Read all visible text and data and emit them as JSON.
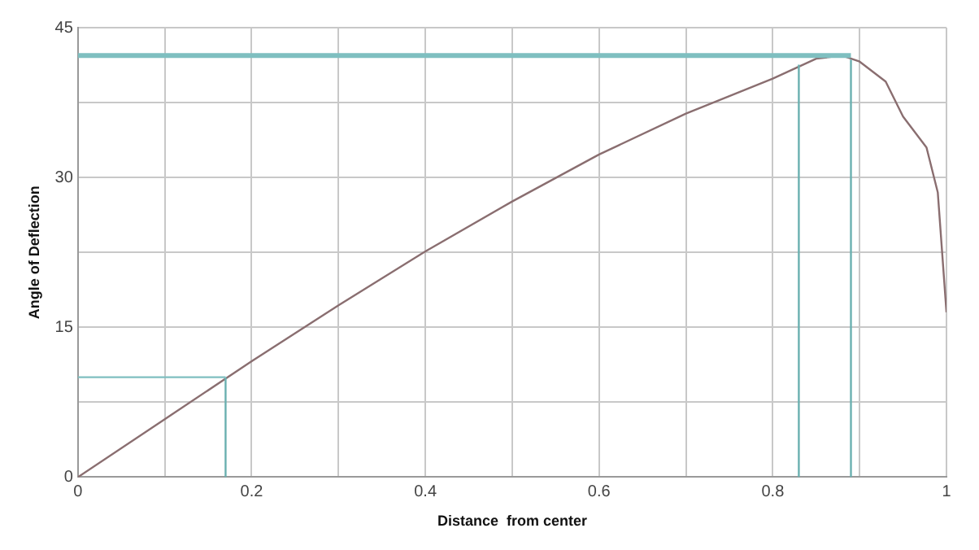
{
  "chart_data": {
    "type": "line",
    "xlabel": "Distance  from center",
    "ylabel": "Angle of Deflection",
    "marker": "none",
    "grid": true,
    "legend": false,
    "xlim": [
      0,
      1
    ],
    "xticks": [
      0,
      {
        "value": 0.1,
        "label": null
      },
      0.2,
      {
        "value": 0.3,
        "label": null
      },
      0.4,
      {
        "value": 0.5,
        "label": null
      },
      0.6,
      {
        "value": 0.7,
        "label": null
      },
      0.8,
      {
        "value": 0.9,
        "label": null
      },
      1
    ],
    "ylim": [
      0,
      45
    ],
    "yticks": [
      0,
      {
        "value": 7.5,
        "label": null
      },
      15,
      {
        "value": 22.5,
        "label": null
      },
      30,
      {
        "value": 37.5,
        "label": null
      },
      45
    ],
    "series": [
      {
        "color": "#7fbfc0",
        "x": [
          0,
          0.89
        ],
        "values": [
          42.2,
          42.2
        ]
      },
      {
        "color": "#6ab0b0",
        "x": [
          0.83,
          0.83
        ],
        "values": [
          0,
          41.3
        ]
      },
      {
        "color": "#6ab0b0",
        "x": [
          0.89,
          0.89
        ],
        "values": [
          0,
          41.8
        ]
      },
      {
        "color": "#7fbfc0",
        "x": [
          0,
          0.17
        ],
        "values": [
          10,
          10
        ]
      },
      {
        "color": "#6ab0b0",
        "x": [
          0.17,
          0.17
        ],
        "values": [
          0,
          10
        ]
      },
      {
        "color": "#8a6e70",
        "x": [
          0,
          0.1,
          0.2,
          0.3,
          0.4,
          0.5,
          0.6,
          0.7,
          0.8,
          0.85,
          0.88,
          0.9,
          0.93,
          0.95,
          0.977,
          0.99,
          1
        ],
        "values": [
          0,
          5.8,
          11.6,
          17.2,
          22.6,
          27.6,
          32.3,
          36.4,
          39.9,
          41.9,
          42.2,
          41.6,
          39.6,
          36.1,
          33,
          28.5,
          16.5
        ]
      }
    ]
  }
}
